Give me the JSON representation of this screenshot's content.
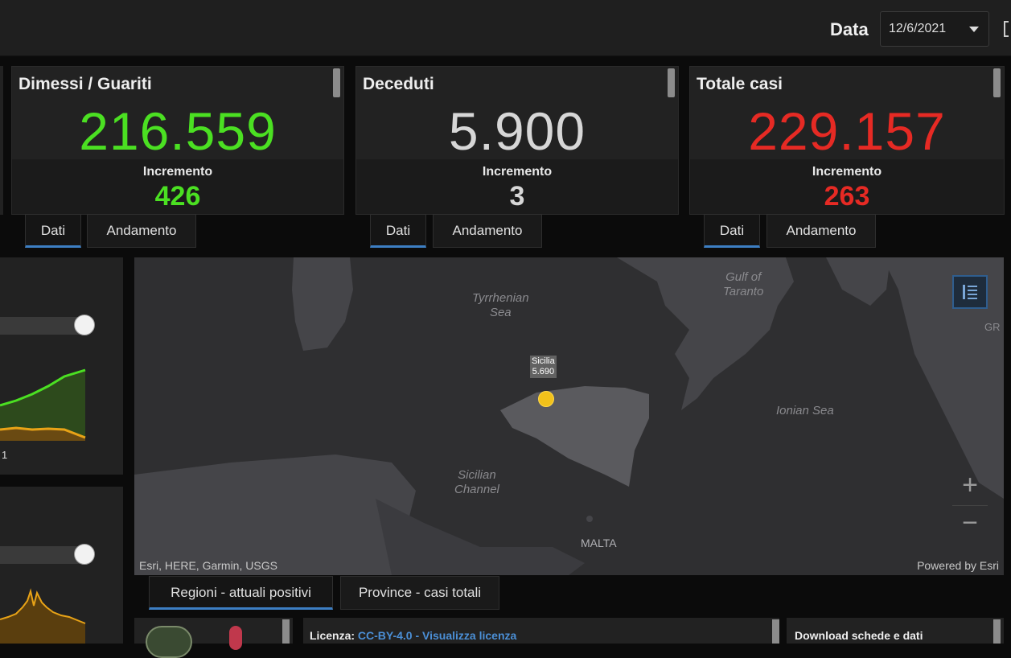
{
  "header": {
    "date_label": "Data",
    "date_value": "12/6/2021"
  },
  "cards": [
    {
      "title": "Dimessi / Guariti",
      "value": "216.559",
      "increment_label": "Incremento",
      "increment_value": "426",
      "color": "#4be022"
    },
    {
      "title": "Deceduti",
      "value": "5.900",
      "increment_label": "Incremento",
      "increment_value": "3",
      "color": "#d7d7d7"
    },
    {
      "title": "Totale casi",
      "value": "229.157",
      "increment_label": "Incremento",
      "increment_value": "263",
      "color": "#e62a24"
    }
  ],
  "card_tabs": [
    {
      "dati": "Dati",
      "andamento": "Andamento"
    },
    {
      "dati": "Dati",
      "andamento": "Andamento"
    },
    {
      "dati": "Dati",
      "andamento": "Andamento"
    }
  ],
  "left_chart_1": {
    "tick_label": "1"
  },
  "map": {
    "labels": {
      "tyrrhenian": "Tyrrhenian\nSea",
      "gulf": "Gulf of\nTaranto",
      "ionian": "Ionian Sea",
      "sicilian_channel": "Sicilian\nChannel",
      "malta": "MALTA",
      "gr": "GR"
    },
    "marker_label_line1": "Sicilia",
    "marker_label_line2": "5.690",
    "attribution": "Esri, HERE, Garmin, USGS",
    "powered_by": "Powered by Esri",
    "zoom_in": "+",
    "zoom_out": "−",
    "legend_icon": "list-icon",
    "marker_color": "#f2c21b"
  },
  "bottom_tabs": {
    "regioni": "Regioni - attuali positivi",
    "province": "Province - casi totali"
  },
  "footer": {
    "licenza_label": "Licenza:",
    "licenza_link": "CC-BY-4.0",
    "separator": " - ",
    "visualizza": "Visualizza licenza",
    "download": "Download schede e dati"
  },
  "colors": {
    "active_tab_underline": "#3d7fc4",
    "green_series": "#4be022",
    "orange_series": "#e8a317"
  }
}
